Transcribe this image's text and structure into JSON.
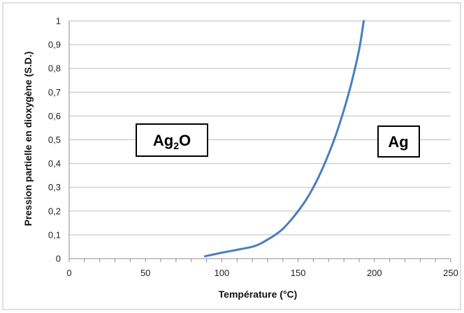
{
  "chart_data": {
    "type": "line",
    "title": "",
    "xlabel": "Température (°C)",
    "ylabel": "Pression partielle en dioxygène (S.D.)",
    "xlim": [
      0,
      250
    ],
    "ylim": [
      0,
      1
    ],
    "x_ticks": [
      "0",
      "50",
      "100",
      "150",
      "200",
      "250"
    ],
    "y_ticks": [
      "0",
      "0,1",
      "0,2",
      "0,3",
      "0,4",
      "0,5",
      "0,6",
      "0,7",
      "0,8",
      "0,9",
      "1"
    ],
    "grid": true,
    "series": [
      {
        "color": "#4a7ebb",
        "x": [
          89,
          100,
          110,
          120,
          125,
          130,
          135,
          140,
          145,
          150,
          155,
          160,
          165,
          170,
          175,
          180,
          185,
          190,
          193
        ],
        "y": [
          0.01,
          0.025,
          0.037,
          0.05,
          0.062,
          0.08,
          0.1,
          0.125,
          0.16,
          0.2,
          0.245,
          0.3,
          0.365,
          0.44,
          0.525,
          0.625,
          0.74,
          0.88,
          1.0
        ]
      }
    ],
    "annotations": [
      {
        "text": "Ag",
        "subscript": "2",
        "suffix": "O"
      },
      {
        "text": "Ag",
        "subscript": "",
        "suffix": ""
      }
    ]
  }
}
